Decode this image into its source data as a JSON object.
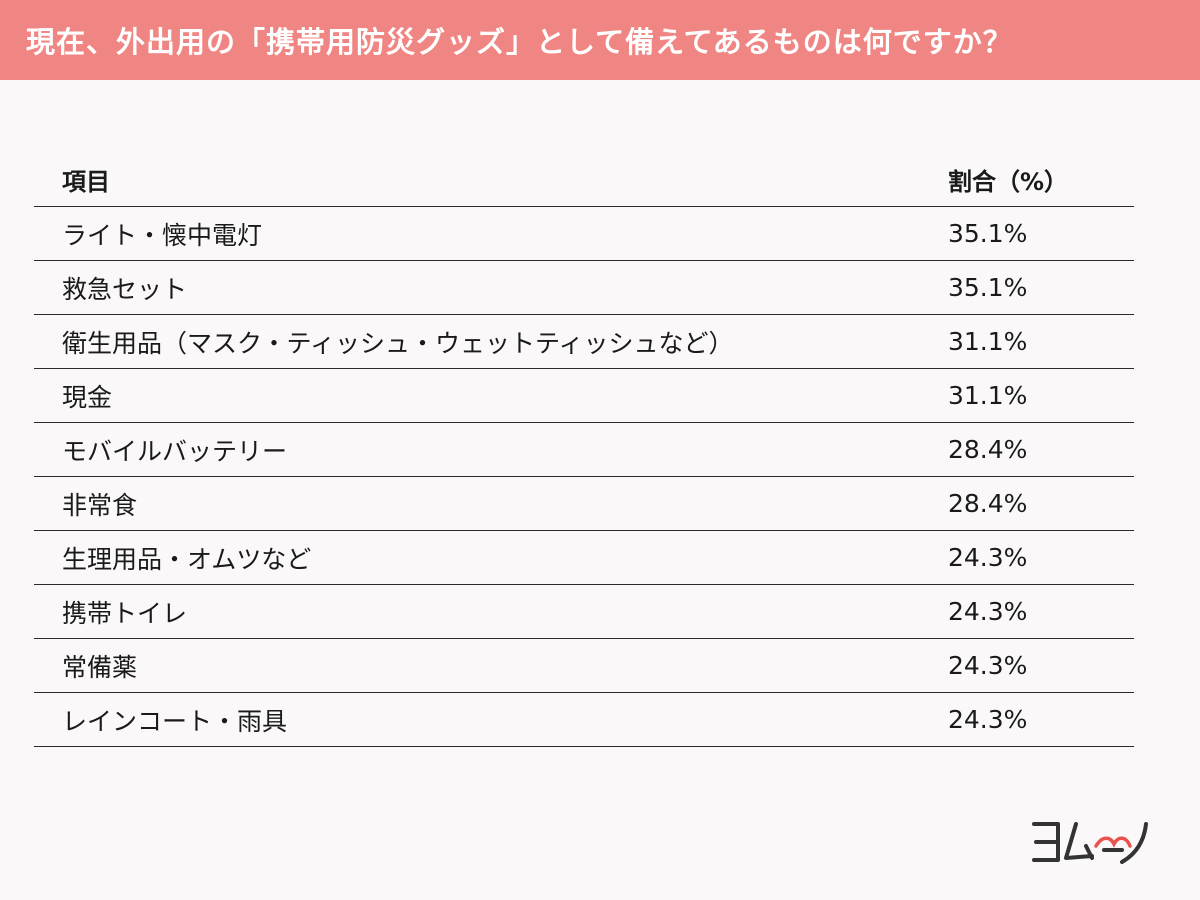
{
  "header": {
    "title": "現在、外出用の「携帯用防災グッズ」として備えてあるものは何ですか？"
  },
  "chart_data": {
    "type": "table",
    "columns": [
      "項目",
      "割合（%）"
    ],
    "rows": [
      {
        "item": "ライト・懐中電灯",
        "value": "35.1%"
      },
      {
        "item": "救急セット",
        "value": "35.1%"
      },
      {
        "item": "衛生用品（マスク・ティッシュ・ウェットティッシュなど）",
        "value": "31.1%"
      },
      {
        "item": "現金",
        "value": "31.1%"
      },
      {
        "item": "モバイルバッテリー",
        "value": "28.4%"
      },
      {
        "item": "非常食",
        "value": "28.4%"
      },
      {
        "item": "生理用品・オムツなど",
        "value": "24.3%"
      },
      {
        "item": "携帯トイレ",
        "value": "24.3%"
      },
      {
        "item": "常備薬",
        "value": "24.3%"
      },
      {
        "item": "レインコート・雨具",
        "value": "24.3%"
      }
    ]
  },
  "logo": {
    "text": "ヨムーノ",
    "accent_color": "#e8524f"
  },
  "colors": {
    "header_bg": "#f08683",
    "background": "#faf8f8"
  }
}
